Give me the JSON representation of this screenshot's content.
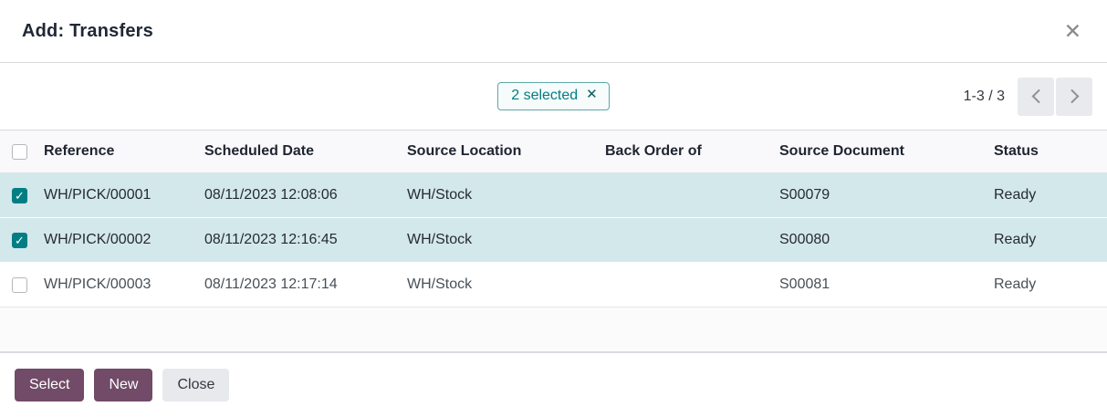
{
  "dialog": {
    "title": "Add: Transfers",
    "close_icon": "✕"
  },
  "selection_chip": {
    "label": "2 selected",
    "remove_icon": "✕"
  },
  "pager": {
    "range": "1-3 / 3"
  },
  "icons": {
    "check": "✓"
  },
  "table": {
    "columns": {
      "reference": "Reference",
      "scheduled_date": "Scheduled Date",
      "source_location": "Source Location",
      "back_order_of": "Back Order of",
      "source_document": "Source Document",
      "status": "Status"
    },
    "rows": [
      {
        "selected": true,
        "reference": "WH/PICK/00001",
        "scheduled_date": "08/11/2023 12:08:06",
        "source_location": "WH/Stock",
        "back_order_of": "",
        "source_document": "S00079",
        "status": "Ready"
      },
      {
        "selected": true,
        "reference": "WH/PICK/00002",
        "scheduled_date": "08/11/2023 12:16:45",
        "source_location": "WH/Stock",
        "back_order_of": "",
        "source_document": "S00080",
        "status": "Ready"
      },
      {
        "selected": false,
        "reference": "WH/PICK/00003",
        "scheduled_date": "08/11/2023 12:17:14",
        "source_location": "WH/Stock",
        "back_order_of": "",
        "source_document": "S00081",
        "status": "Ready"
      }
    ]
  },
  "footer": {
    "select_label": "Select",
    "new_label": "New",
    "close_label": "Close"
  },
  "colors": {
    "accent_teal": "#017e84",
    "selected_row_bg": "#d3e8ea",
    "primary_purple": "#714b67",
    "secondary_button_bg": "#e7e9ed"
  }
}
